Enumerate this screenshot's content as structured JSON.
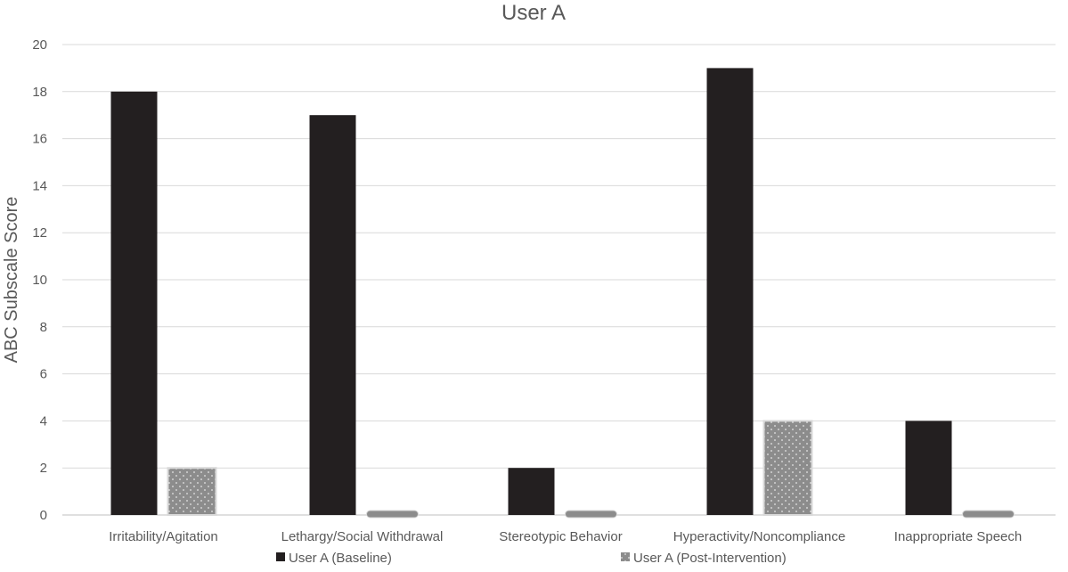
{
  "chart_data": {
    "type": "bar",
    "title": "User A",
    "xlabel": "",
    "ylabel": "ABC  Subscale Score",
    "ylim": [
      0,
      20
    ],
    "yticks": [
      0,
      2,
      4,
      6,
      8,
      10,
      12,
      14,
      16,
      18,
      20
    ],
    "grid": true,
    "legend_position": "bottom",
    "categories": [
      "Irritability/Agitation",
      "Lethargy/Social Withdrawal",
      "Stereotypic Behavior",
      "Hyperactivity/Noncompliance",
      "Inappropriate Speech"
    ],
    "series": [
      {
        "name": "User A (Baseline)",
        "values": [
          18,
          17,
          2,
          19,
          4
        ],
        "color": "#231f20",
        "pattern": "solid"
      },
      {
        "name": "User A (Post-Intervention)",
        "values": [
          2,
          0,
          0,
          4,
          0
        ],
        "color": "#8c8c8c",
        "pattern": "dotted"
      }
    ]
  }
}
